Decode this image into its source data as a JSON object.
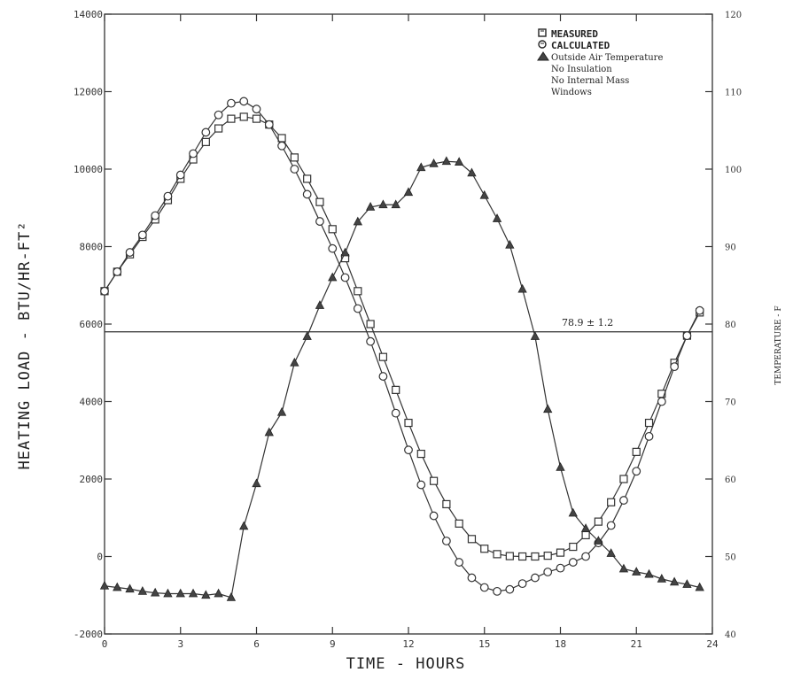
{
  "chart_data": {
    "type": "line",
    "xlabel": "TIME - HOURS",
    "ylabel": "HEATING LOAD - BTU/HR-FT²",
    "y2label": "TEMPERATURE - F",
    "xlim": [
      0,
      24
    ],
    "ylim": [
      -2000,
      14000
    ],
    "y2lim": [
      40,
      120
    ],
    "xticks": [
      "0",
      "3",
      "6",
      "9",
      "12",
      "15",
      "18",
      "21",
      "24"
    ],
    "yticks": [
      "-2000",
      "0",
      "2000",
      "4000",
      "6000",
      "8000",
      "10000",
      "12000",
      "14000"
    ],
    "y2ticks": [
      "40",
      "50",
      "60",
      "70",
      "80",
      "90",
      "100",
      "110",
      "120"
    ],
    "grid": false,
    "legend_position": "top-right",
    "legend_notes": [
      "No Insulation",
      "No Internal Mass",
      "Windows"
    ],
    "series": [
      {
        "name": "MEASURED",
        "axis": "left",
        "marker": "square",
        "x": [
          0,
          0.5,
          1,
          1.5,
          2,
          2.5,
          3,
          3.5,
          4,
          4.5,
          5,
          5.5,
          6,
          6.5,
          7,
          7.5,
          8,
          8.5,
          9,
          9.5,
          10,
          10.5,
          11,
          11.5,
          12,
          12.5,
          13,
          13.5,
          14,
          14.5,
          15,
          15.5,
          16,
          16.5,
          17,
          17.5,
          18,
          18.5,
          19,
          19.5,
          20,
          20.5,
          21,
          21.5,
          22,
          22.5,
          23,
          23.5
        ],
        "values": [
          6850,
          7350,
          7800,
          8250,
          8700,
          9200,
          9750,
          10250,
          10700,
          11050,
          11300,
          11350,
          11300,
          11150,
          10800,
          10300,
          9750,
          9150,
          8450,
          7700,
          6850,
          6000,
          5150,
          4300,
          3450,
          2650,
          1950,
          1350,
          850,
          450,
          200,
          60,
          10,
          0,
          0,
          20,
          100,
          250,
          550,
          900,
          1400,
          2000,
          2700,
          3450,
          4200,
          5000,
          5700,
          6300
        ]
      },
      {
        "name": "CALCULATED",
        "axis": "left",
        "marker": "circle",
        "x": [
          0,
          0.5,
          1,
          1.5,
          2,
          2.5,
          3,
          3.5,
          4,
          4.5,
          5,
          5.5,
          6,
          6.5,
          7,
          7.5,
          8,
          8.5,
          9,
          9.5,
          10,
          10.5,
          11,
          11.5,
          12,
          12.5,
          13,
          13.5,
          14,
          14.5,
          15,
          15.5,
          16,
          16.5,
          17,
          17.5,
          18,
          18.5,
          19,
          19.5,
          20,
          20.5,
          21,
          21.5,
          22,
          22.5,
          23,
          23.5
        ],
        "values": [
          6850,
          7350,
          7850,
          8300,
          8800,
          9300,
          9850,
          10400,
          10950,
          11400,
          11700,
          11750,
          11550,
          11150,
          10600,
          10000,
          9350,
          8650,
          7950,
          7200,
          6400,
          5550,
          4650,
          3700,
          2750,
          1850,
          1050,
          400,
          -150,
          -550,
          -800,
          -900,
          -850,
          -700,
          -550,
          -400,
          -300,
          -150,
          0,
          350,
          800,
          1450,
          2200,
          3100,
          4000,
          4900,
          5700,
          6350
        ]
      },
      {
        "name": "Outside Air Temperature",
        "axis": "right",
        "marker": "triangle",
        "x": [
          0,
          0.5,
          1,
          1.5,
          2,
          2.5,
          3,
          3.5,
          4,
          4.5,
          5,
          5.5,
          6,
          6.5,
          7,
          7.5,
          8,
          8.5,
          9,
          9.5,
          10,
          10.5,
          11,
          11.5,
          12,
          12.5,
          13,
          13.5,
          14,
          14.5,
          15,
          15.5,
          16,
          16.5,
          17,
          17.5,
          18,
          18.5,
          19,
          19.5,
          20,
          20.5,
          21,
          21.5,
          22,
          22.5,
          23,
          23.5
        ],
        "values": [
          46.2,
          46.0,
          45.8,
          45.5,
          45.3,
          45.2,
          45.2,
          45.2,
          45.0,
          45.2,
          44.7,
          53.9,
          59.4,
          66.0,
          68.6,
          75.0,
          78.4,
          82.4,
          86.0,
          89.2,
          93.2,
          95.1,
          95.4,
          95.4,
          97.0,
          100.2,
          100.7,
          101.0,
          100.9,
          99.5,
          96.6,
          93.6,
          90.2,
          84.5,
          78.4,
          69.0,
          61.5,
          55.6,
          53.6,
          52.0,
          50.4,
          48.4,
          48.0,
          47.7,
          47.1,
          46.7,
          46.4,
          46.0
        ]
      }
    ],
    "reference_line": {
      "axis": "left",
      "value": 5800,
      "label": "78.9 ± 1.2"
    }
  }
}
